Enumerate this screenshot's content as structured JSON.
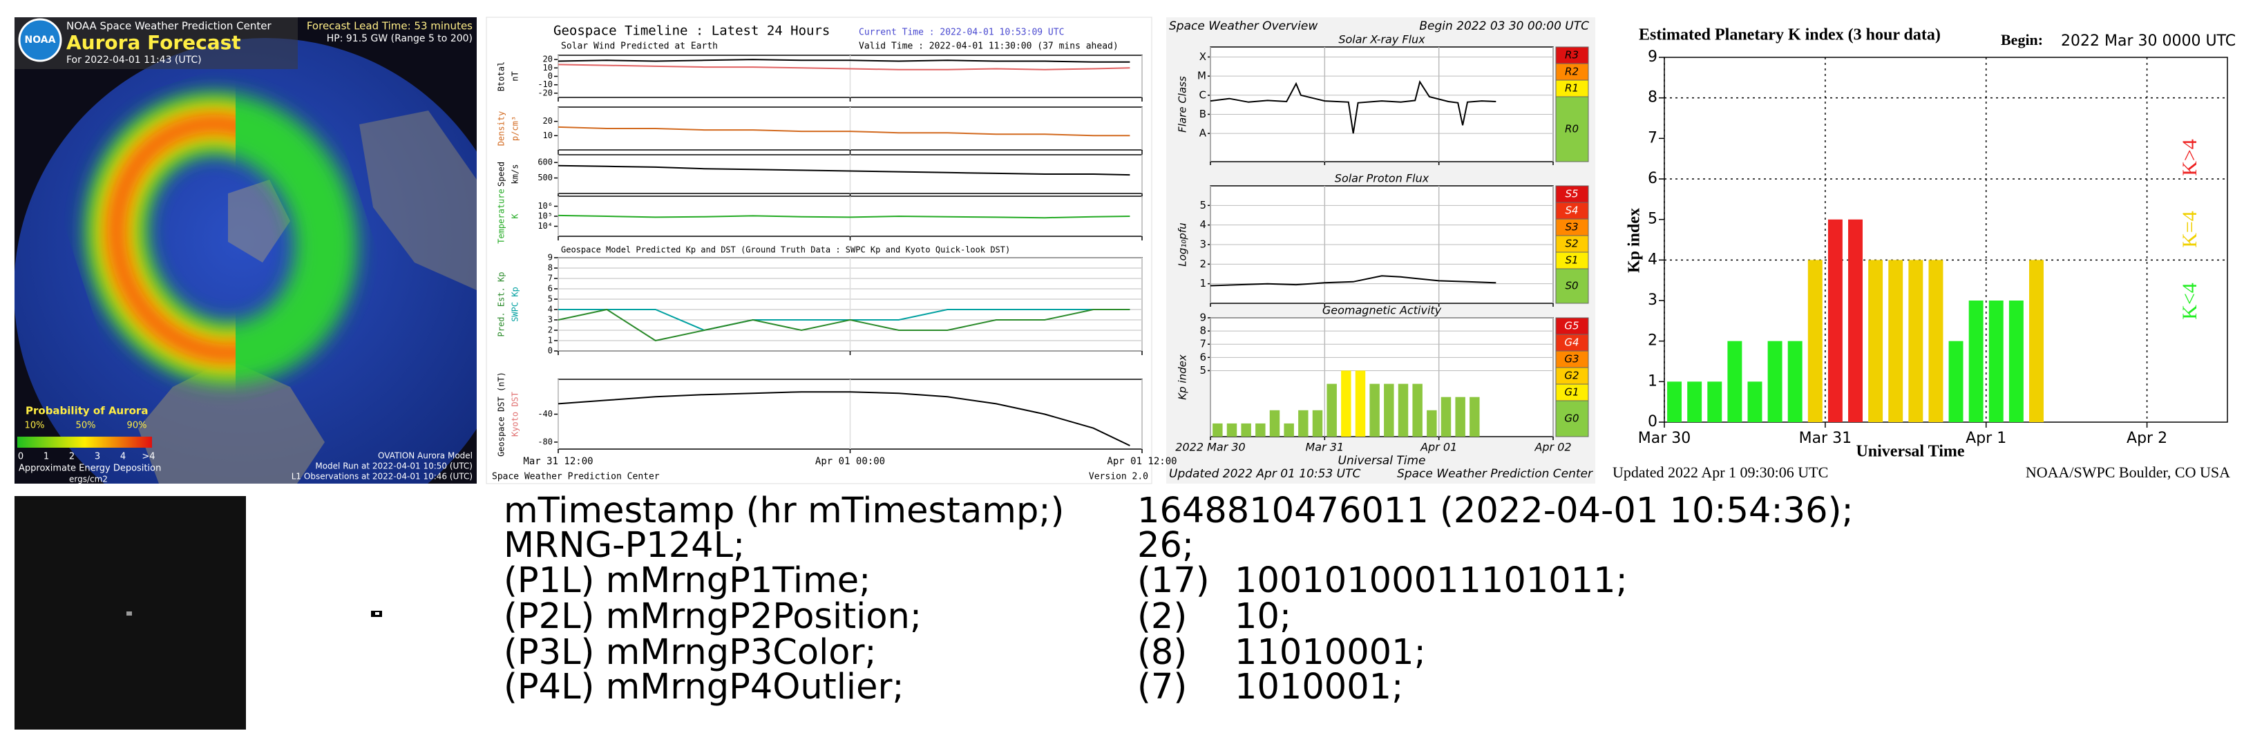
{
  "aurora": {
    "logo": "NOAA",
    "org": "NOAA Space Weather Prediction Center",
    "title": "Aurora Forecast",
    "for": "For 2022-04-01 11:43 (UTC)",
    "lead": "Forecast Lead Time: 53 minutes",
    "hp": "HP: 91.5 GW (Range 5 to 200)",
    "prob_title": "Probability of Aurora",
    "prob_ticks": [
      "10%",
      "50%",
      "90%"
    ],
    "energy_ticks": [
      "0",
      "1",
      "2",
      "3",
      "4",
      ">4"
    ],
    "energy_title": "Approximate Energy Deposition",
    "energy_units": "ergs/cm2",
    "model": "OVATION Aurora Model",
    "model_run": "Model Run at 2022-04-01 10:50 (UTC)",
    "l1": "L1 Observations at 2022-04-01 10:46 (UTC)"
  },
  "geospace": {
    "title": "Geospace Timeline : Latest 24 Hours",
    "current": "Current Time : 2022-04-01 10:53:09 UTC",
    "valid": "Valid Time : 2022-04-01 11:30:00 (37 mins ahead)",
    "wind_title": "Solar Wind Predicted at Earth",
    "model_title": "Geospace Model Predicted Kp and DST (Ground Truth Data : SWPC Kp and Kyoto Quick-look DST)",
    "footer": "Space Weather Prediction Center",
    "version": "Version 2.0",
    "xlim": [
      0,
      24
    ],
    "xticks": [
      {
        "value": 0,
        "label": "Mar 31 12:00"
      },
      {
        "value": 12,
        "label": "Apr 01 00:00"
      },
      {
        "value": 24,
        "label": "Apr 01 12:00"
      }
    ],
    "x": [
      0,
      2,
      4,
      6,
      8,
      10,
      12,
      14,
      16,
      18,
      20,
      22,
      23.5
    ],
    "panels": [
      {
        "labels": [
          {
            "text": "Btotal",
            "color": "#000000"
          },
          {
            "text": "nT",
            "color": "#000000"
          }
        ],
        "ylim": [
          -25,
          25
        ],
        "yticks": [
          -20,
          -10,
          0,
          10,
          20
        ],
        "series": [
          {
            "color": "#000000",
            "values": [
              18,
              19,
              18,
              19,
              20,
              19,
              19,
              18,
              19,
              18,
              18,
              17,
              17
            ]
          },
          {
            "color": "#e06060",
            "values": [
              14,
              13,
              12,
              11,
              11,
              10,
              9,
              8,
              8,
              9,
              8,
              9,
              10
            ]
          }
        ]
      },
      {
        "labels": [
          {
            "text": "Density",
            "color": "#d2691e"
          },
          {
            "text": "p/cm³",
            "color": "#d2691e"
          }
        ],
        "ylim": [
          0,
          30
        ],
        "yticks": [
          10,
          20
        ],
        "series": [
          {
            "color": "#d2691e",
            "values": [
              16,
              15,
              15,
              14,
              14,
              13,
              13,
              12,
              12,
              11,
              11,
              10,
              10
            ]
          }
        ]
      },
      {
        "labels": [
          {
            "text": "Speed",
            "color": "#000000"
          },
          {
            "text": "km/s",
            "color": "#000000"
          }
        ],
        "ylim": [
          400,
          650
        ],
        "yticks": [
          500,
          600
        ],
        "series": [
          {
            "color": "#000000",
            "values": [
              580,
              575,
              570,
              560,
              555,
              550,
              545,
              540,
              535,
              530,
              525,
              525,
              520
            ]
          }
        ]
      },
      {
        "labels": [
          {
            "text": "Temperature",
            "color": "#22aa22"
          },
          {
            "text": "K",
            "color": "#22aa22"
          }
        ],
        "log": true,
        "ylim": [
          1000,
          10000000
        ],
        "yticks": [
          {
            "value": 10000,
            "label": "10⁴"
          },
          {
            "value": 100000,
            "label": "10⁵"
          },
          {
            "value": 1000000,
            "label": "10⁶"
          }
        ],
        "series": [
          {
            "color": "#22aa22",
            "values": [
              120000,
              100000,
              80000,
              90000,
              110000,
              90000,
              80000,
              100000,
              90000,
              80000,
              70000,
              90000,
              100000
            ]
          }
        ]
      },
      {
        "labels": [
          {
            "text": "Pred. Est. Kp",
            "color": "#2a8a2a"
          },
          {
            "text": "SWPC Kp",
            "color": "#00a0a0"
          }
        ],
        "ylim": [
          0,
          9
        ],
        "yticks": [
          0,
          1,
          2,
          3,
          4,
          5,
          6,
          7,
          8,
          9
        ],
        "grid": true,
        "series": [
          {
            "color": "#00a0a0",
            "values": [
              4,
              4,
              4,
              2,
              3,
              3,
              3,
              3,
              4,
              4,
              4,
              4,
              4
            ]
          },
          {
            "color": "#2a8a2a",
            "values": [
              3,
              4,
              1,
              2,
              3,
              2,
              3,
              2,
              2,
              3,
              3,
              4,
              4
            ]
          }
        ]
      },
      {
        "labels": [
          {
            "text": "Geospace DST (nT)",
            "color": "#000000"
          },
          {
            "text": "Kyoto DST",
            "color": "#e07070"
          }
        ],
        "ylim": [
          -90,
          10
        ],
        "yticks": [
          -80,
          -40
        ],
        "series": [
          {
            "color": "#000000",
            "values": [
              -25,
              -20,
              -15,
              -12,
              -10,
              -8,
              -8,
              -10,
              -15,
              -25,
              -40,
              -60,
              -85
            ]
          }
        ]
      }
    ]
  },
  "overview": {
    "title": "Space Weather Overview",
    "begin": "Begin 2022 03 30 00:00 UTC",
    "xlim": [
      0,
      72
    ],
    "xticks": [
      {
        "value": 0,
        "label": "2022 Mar 30"
      },
      {
        "value": 24,
        "label": "Mar 31"
      },
      {
        "value": 48,
        "label": "Apr 01"
      },
      {
        "value": 72,
        "label": "Apr 02"
      }
    ],
    "xlabel": "Universal Time",
    "updated": "Updated 2022 Apr 01 10:53 UTC",
    "credit": "Space Weather Prediction Center",
    "xray": {
      "title": "Solar X-ray Flux",
      "ylabel": "Flare Class",
      "log": true,
      "ylim": [
        1e-09,
        0.001
      ],
      "yticks": [
        {
          "value": 0.0003,
          "label": "X"
        },
        {
          "value": 3e-05,
          "label": "M"
        },
        {
          "value": 3e-06,
          "label": "C"
        },
        {
          "value": 3e-07,
          "label": "B"
        },
        {
          "value": 3e-08,
          "label": "A"
        }
      ],
      "x": [
        0,
        4,
        8,
        12,
        16,
        18,
        19,
        24,
        29,
        30,
        31,
        36,
        40,
        43,
        44,
        46,
        50,
        52,
        53,
        54,
        57,
        60
      ],
      "values": [
        1.5e-06,
        2e-06,
        1.3e-06,
        1.6e-06,
        1.4e-06,
        1.2e-05,
        3e-06,
        1.5e-06,
        1.3e-06,
        3e-08,
        1.2e-06,
        1.5e-06,
        1.3e-06,
        1.6e-06,
        1.5e-05,
        2.5e-06,
        1.4e-06,
        1.2e-06,
        8e-08,
        1.3e-06,
        1.5e-06,
        1.4e-06
      ],
      "color": "#000000",
      "bands": [
        {
          "label": "R3",
          "color": "#dd1111"
        },
        {
          "label": "R2",
          "color": "#ff8800"
        },
        {
          "label": "R1",
          "color": "#ffee00"
        },
        {
          "label": "R0",
          "color": "#88cc44"
        }
      ]
    },
    "proton": {
      "title": "Solar Proton Flux",
      "ylabel": "Log₁₀pfu",
      "ylim": [
        0,
        6
      ],
      "yticks": [
        1,
        2,
        3,
        4,
        5
      ],
      "x": [
        0,
        6,
        12,
        18,
        24,
        30,
        36,
        40,
        44,
        48,
        54,
        60
      ],
      "values": [
        0.9,
        0.95,
        1.0,
        0.95,
        1.05,
        1.1,
        1.4,
        1.35,
        1.25,
        1.15,
        1.1,
        1.05
      ],
      "color": "#000000",
      "bands": [
        {
          "label": "S5",
          "color": "#dd1111"
        },
        {
          "label": "S4",
          "color": "#ee3311"
        },
        {
          "label": "S3",
          "color": "#ff8800"
        },
        {
          "label": "S2",
          "color": "#ffcc00"
        },
        {
          "label": "S1",
          "color": "#ffee00"
        },
        {
          "label": "S0",
          "color": "#88cc44"
        }
      ]
    },
    "geomag": {
      "type": "bar",
      "title": "Geomagnetic Activity",
      "ylabel": "Kp index",
      "ylim": [
        0,
        9
      ],
      "yticks": [
        5,
        6,
        7,
        8,
        9
      ],
      "x": [
        0,
        3,
        6,
        9,
        12,
        15,
        18,
        21,
        24,
        27,
        30,
        33,
        36,
        39,
        42,
        45,
        48,
        51,
        54
      ],
      "values": [
        1,
        1,
        1,
        1,
        2,
        1,
        2,
        2,
        4,
        5,
        5,
        4,
        4,
        4,
        4,
        2,
        3,
        3,
        3
      ],
      "colors": [
        "#8cc63f",
        "#8cc63f",
        "#8cc63f",
        "#8cc63f",
        "#8cc63f",
        "#8cc63f",
        "#8cc63f",
        "#8cc63f",
        "#8cc63f",
        "#ffee00",
        "#ffee00",
        "#8cc63f",
        "#8cc63f",
        "#8cc63f",
        "#8cc63f",
        "#8cc63f",
        "#8cc63f",
        "#8cc63f",
        "#8cc63f"
      ],
      "bands": [
        {
          "label": "G5",
          "color": "#dd1111"
        },
        {
          "label": "G4",
          "color": "#ee3311"
        },
        {
          "label": "G3",
          "color": "#ff8800"
        },
        {
          "label": "G2",
          "color": "#ffcc00"
        },
        {
          "label": "G1",
          "color": "#ffee00"
        },
        {
          "label": "G0",
          "color": "#88cc44"
        }
      ]
    }
  },
  "kp": {
    "type": "bar",
    "title": "Estimated Planetary K index (3 hour data)",
    "begin_label": "Begin:",
    "begin": "2022 Mar 30 0000 UTC",
    "ylabel": "Kp index",
    "xlabel": "Universal Time",
    "updated": "Updated 2022 Apr  1 09:30:06 UTC",
    "credit": "NOAA/SWPC Boulder, CO USA",
    "xlim": [
      0,
      84
    ],
    "xticks": [
      {
        "value": 0,
        "label": "Mar 30"
      },
      {
        "value": 24,
        "label": "Mar 31"
      },
      {
        "value": 48,
        "label": "Apr 1"
      },
      {
        "value": 72,
        "label": "Apr 2"
      }
    ],
    "ylim": [
      0,
      9
    ],
    "yticks": [
      0,
      1,
      2,
      3,
      4,
      5,
      6,
      7,
      8,
      9
    ],
    "grid_y": [
      4,
      6,
      8
    ],
    "x": [
      0,
      3,
      6,
      9,
      12,
      15,
      18,
      21,
      24,
      27,
      30,
      33,
      36,
      39,
      42,
      45,
      48,
      51,
      54
    ],
    "values": [
      1,
      1,
      1,
      2,
      1,
      2,
      2,
      4,
      5,
      5,
      4,
      4,
      4,
      4,
      2,
      3,
      3,
      3,
      4
    ],
    "colors": [
      "#22ee22",
      "#22ee22",
      "#22ee22",
      "#22ee22",
      "#22ee22",
      "#22ee22",
      "#22ee22",
      "#f0d000",
      "#ee2222",
      "#ee2222",
      "#f0d000",
      "#f0d000",
      "#f0d000",
      "#f0d000",
      "#22ee22",
      "#22ee22",
      "#22ee22",
      "#22ee22",
      "#f0d000"
    ],
    "legend": [
      {
        "name": "K>4",
        "color": "#ee2222"
      },
      {
        "name": "K=4",
        "color": "#f0d000"
      },
      {
        "name": "K<4",
        "color": "#22ee22"
      }
    ]
  },
  "console": {
    "rows": [
      {
        "label": "mTimestamp (hr mTimestamp;)",
        "value": "1648810476011 (2022-04-01 10:54:36);"
      },
      {
        "label": "MRNG-P124L;",
        "value": "26;"
      },
      {
        "label": "(P1L) mMrngP1Time;",
        "code": "(17)",
        "value": "10010100011101011;"
      },
      {
        "label": "(P2L) mMrngP2Position;",
        "code": "(2)",
        "value": "10;"
      },
      {
        "label": "(P3L) mMrngP3Color;",
        "code": "(8)",
        "value": "11010001;"
      },
      {
        "label": "(P4L) mMrngP4Outlier;",
        "code": "(7)",
        "value": "1010001;"
      }
    ]
  }
}
